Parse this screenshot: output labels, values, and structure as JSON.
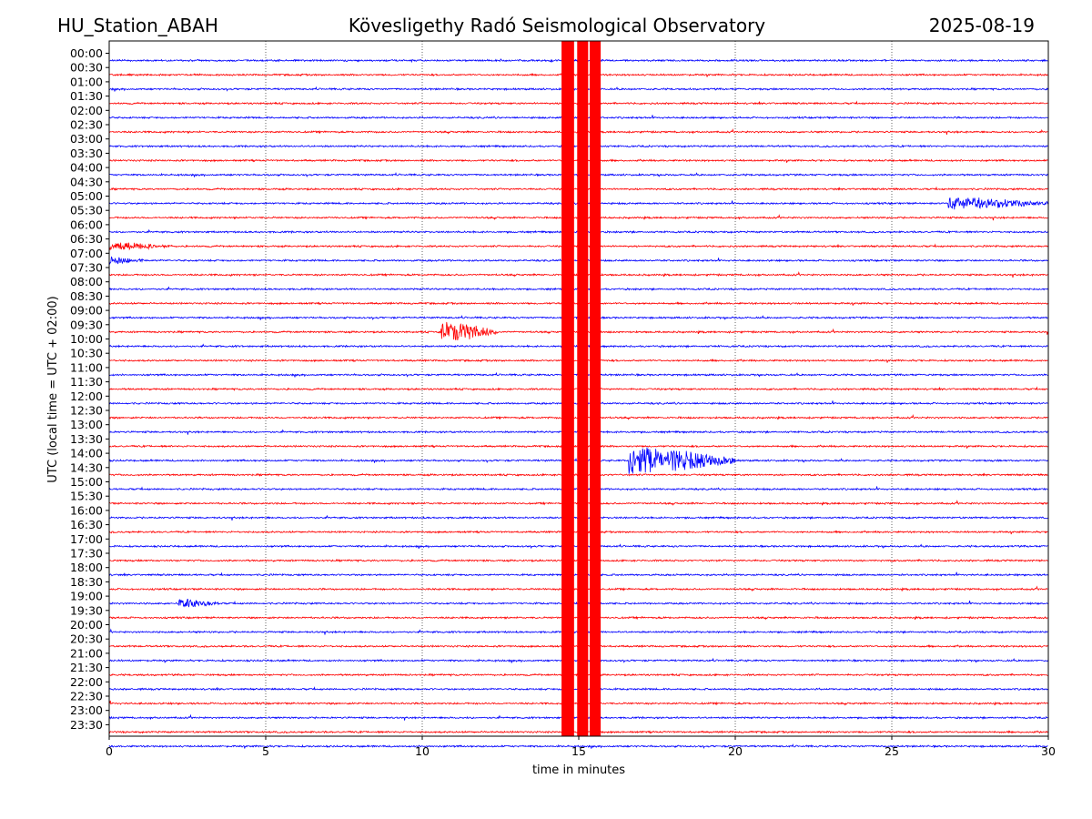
{
  "header": {
    "left": "HU_Station_ABAH",
    "center": "Kövesligethy Radó Seismological Observatory",
    "right": "2025-08-19"
  },
  "chart_data": {
    "type": "line",
    "title": "Kövesligethy Radó Seismological Observatory",
    "xlabel": "time in minutes",
    "ylabel": "UTC (local time = UTC + 02:00)",
    "xlim": [
      0,
      30
    ],
    "x_ticks": [
      "0",
      "5",
      "10",
      "15",
      "20",
      "25",
      "30"
    ],
    "grid": "vertical dotted",
    "trace_colors": [
      "#0000ff",
      "#ff0000"
    ],
    "trace_order": "alternating blue/red, starting with blue at 00:00",
    "hour_labels": [
      "00:00",
      "00:30",
      "01:00",
      "01:30",
      "02:00",
      "02:30",
      "03:00",
      "03:30",
      "04:00",
      "04:30",
      "05:00",
      "05:30",
      "06:00",
      "06:30",
      "07:00",
      "07:30",
      "08:00",
      "08:30",
      "09:00",
      "09:30",
      "10:00",
      "10:30",
      "11:00",
      "11:30",
      "12:00",
      "12:30",
      "13:00",
      "13:30",
      "14:00",
      "14:30",
      "15:00",
      "15:30",
      "16:00",
      "16:30",
      "17:00",
      "17:30",
      "18:00",
      "18:30",
      "19:00",
      "19:30",
      "20:00",
      "20:30",
      "21:00",
      "21:30",
      "22:00",
      "22:30",
      "23:00",
      "23:30"
    ],
    "events": [
      {
        "trace": "05:00",
        "start": 26.8,
        "end": 30.0,
        "amp": 0.55,
        "color": "#0000ff"
      },
      {
        "trace": "09:30",
        "start": 10.6,
        "end": 12.4,
        "amp": 0.9,
        "color": "#ff0000"
      },
      {
        "trace": "14:00",
        "start": 16.6,
        "end": 20.0,
        "amp": 1.2,
        "color": "#0000ff"
      },
      {
        "trace": "06:30",
        "start": 0.0,
        "end": 2.0,
        "amp": 0.35,
        "color": "#ff0000"
      },
      {
        "trace": "07:00",
        "start": 0.0,
        "end": 1.2,
        "amp": 0.35,
        "color": "#0000ff"
      },
      {
        "trace": "19:00",
        "start": 2.2,
        "end": 3.5,
        "amp": 0.35,
        "color": "#0000ff"
      }
    ],
    "saturated_bands_minutes": [
      [
        14.45,
        14.85
      ],
      [
        14.95,
        15.3
      ],
      [
        15.35,
        15.7
      ]
    ]
  }
}
